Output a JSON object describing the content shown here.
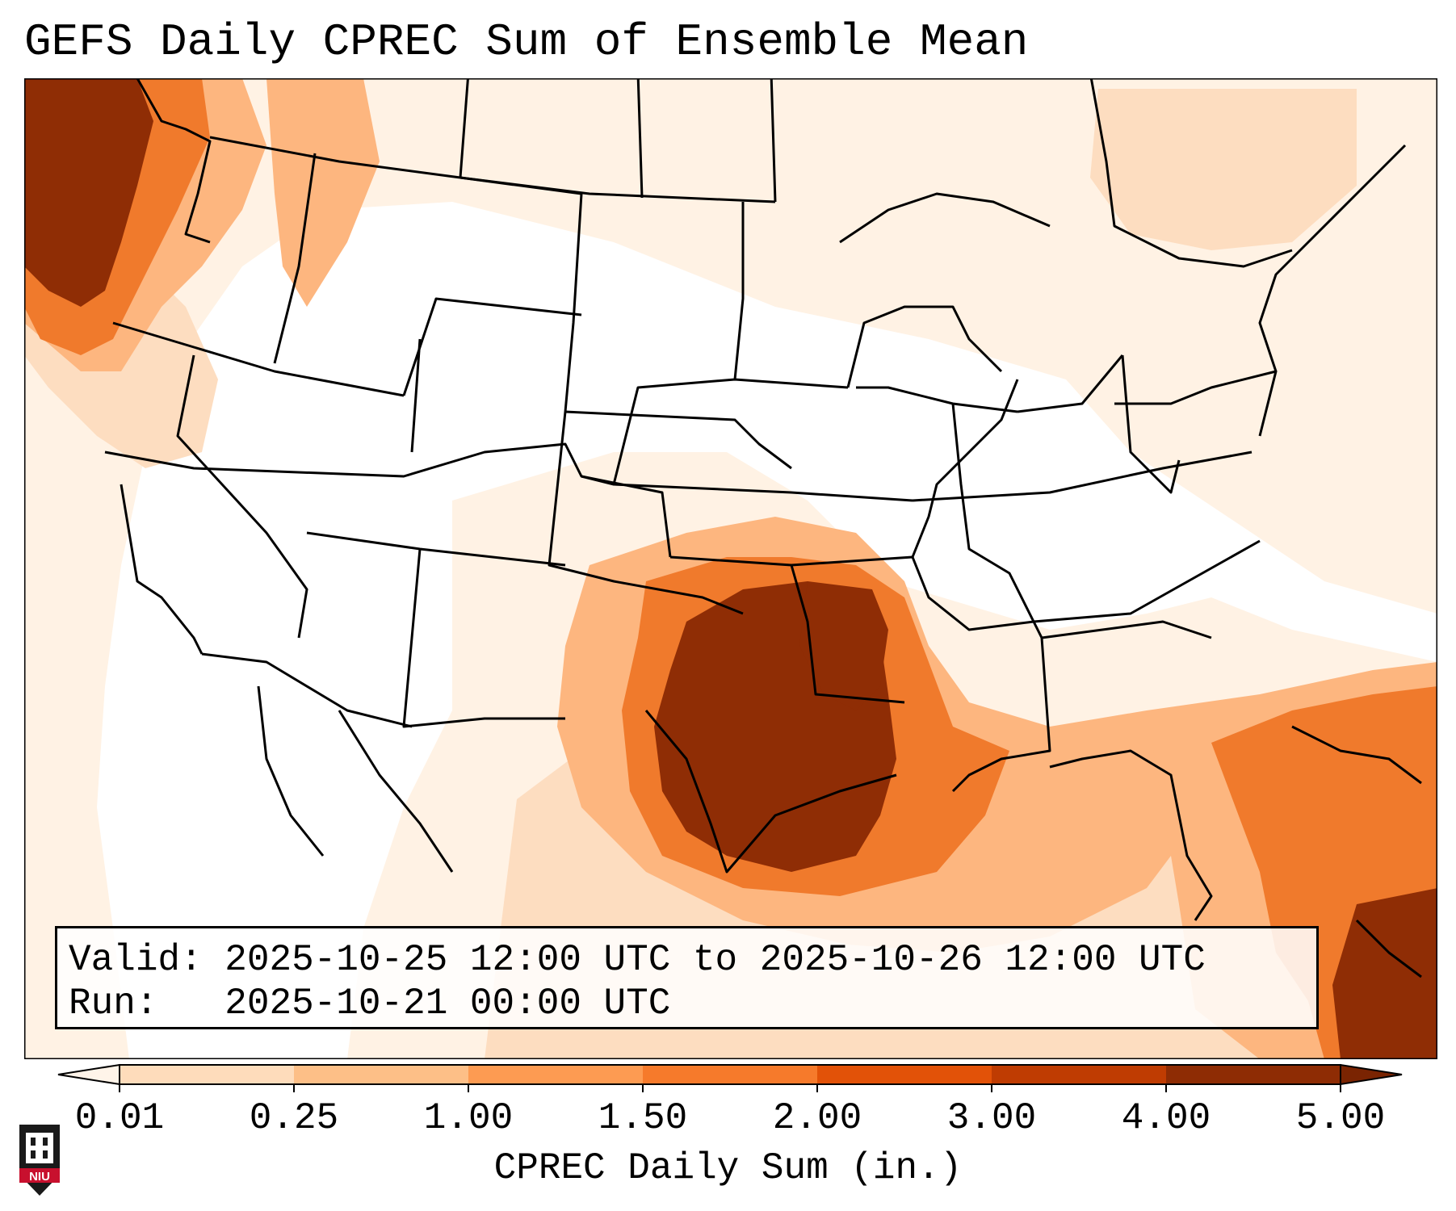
{
  "title": "GEFS Daily CPREC Sum of Ensemble Mean",
  "info": {
    "valid_label": "Valid:",
    "valid_value": "2025-10-25 12:00 UTC to 2025-10-26 12:00 UTC",
    "run_label": "Run:",
    "run_value": "2025-10-21 00:00 UTC"
  },
  "colorbar": {
    "title": "CPREC Daily Sum (in.)",
    "ticks": [
      "0.01",
      "0.25",
      "1.00",
      "1.50",
      "2.00",
      "3.00",
      "4.00",
      "5.00"
    ],
    "colors": [
      "#fff4e9",
      "#fedcbb",
      "#fdbf87",
      "#fd9b52",
      "#f67a2b",
      "#e25208",
      "#bf3c02",
      "#8e2c04"
    ],
    "extend": "both"
  },
  "logo": {
    "text": "NIU",
    "colors": {
      "shield": "#1a1a1a",
      "band": "#c8102e"
    }
  }
}
